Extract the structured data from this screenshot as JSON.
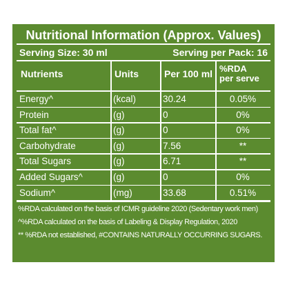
{
  "title": "Nutritional Information (Approx. Values)",
  "serving_size": "Serving Size: 30 ml",
  "serving_per_pack": "Serving per Pack: 16",
  "table": {
    "headers": [
      "Nutrients",
      "Units",
      "Per 100 ml",
      "%RDA per serve"
    ],
    "rows": [
      [
        "Energy^",
        "(kcal)",
        "30.24",
        "0.05%"
      ],
      [
        "Protein",
        "(g)",
        "0",
        "0%"
      ],
      [
        "Total fat^",
        "(g)",
        "0",
        "0%"
      ],
      [
        "Carbohydrate",
        "(g)",
        "7.56",
        "**"
      ],
      [
        "Total Sugars",
        "(g)",
        "6.71",
        "**"
      ],
      [
        "Added Sugars^",
        "(g)",
        "0",
        "0%"
      ],
      [
        "Sodium^",
        "(mg)",
        "33.68",
        "0.51%"
      ]
    ]
  },
  "footnotes": [
    "%RDA calculated on the basis of ICMR guideline 2020 (Sedentary work men)",
    "^%RDA  calculated on the basis of Labeling & Display  Regulation, 2020",
    "** %RDA not established, #CONTAINS NATURALLY OCCURRING SUGARS."
  ]
}
